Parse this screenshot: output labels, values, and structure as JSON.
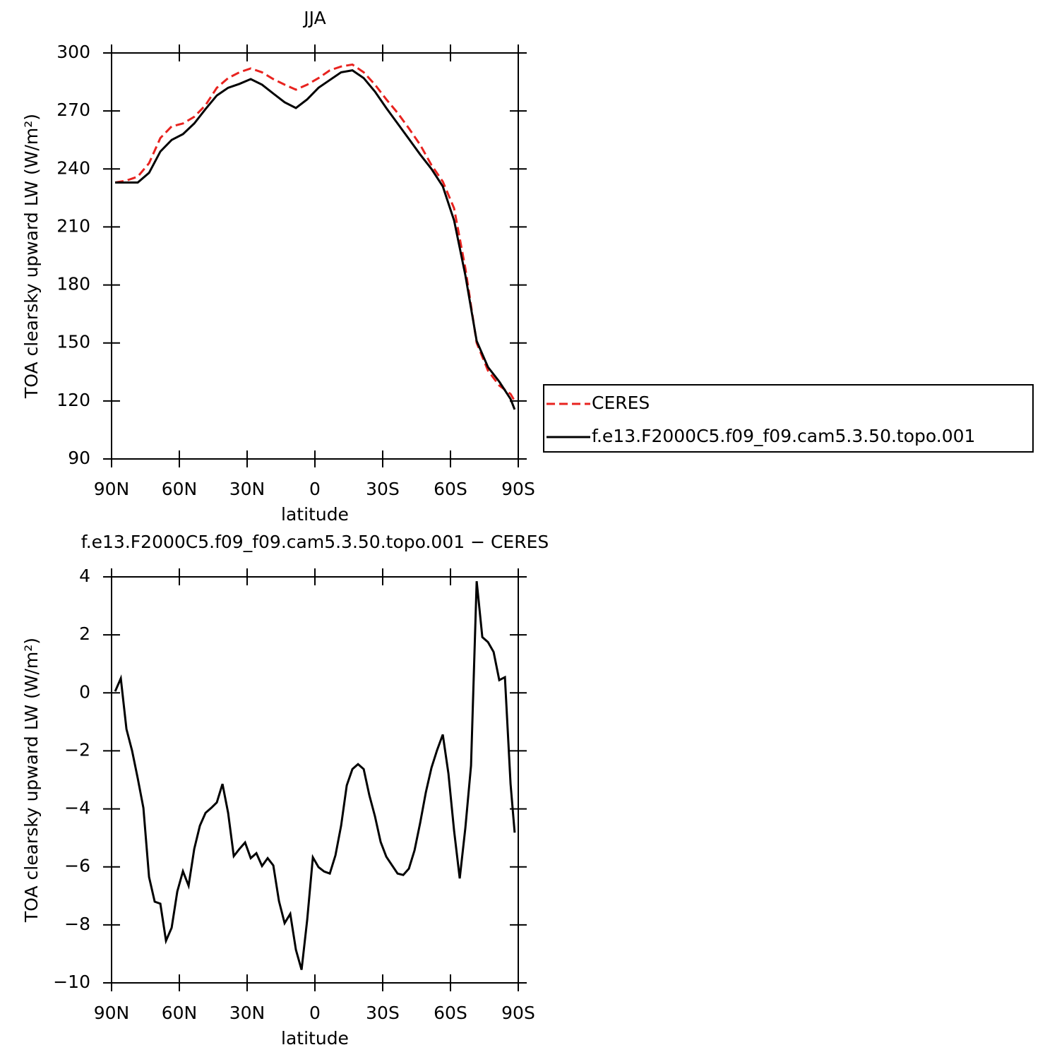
{
  "chart_data": [
    {
      "type": "line",
      "title": "JJA",
      "xlabel": "latitude",
      "ylabel": "TOA clearsky upward LW (W/m²)",
      "x": [
        88.4,
        83.4,
        78.4,
        73.4,
        68.4,
        63.4,
        58.4,
        53.4,
        48.4,
        43.4,
        38.4,
        33.4,
        28.4,
        23.4,
        18.4,
        13.4,
        8.4,
        3.4,
        -1.6,
        -6.6,
        -11.6,
        -16.6,
        -21.6,
        -26.6,
        -31.6,
        -36.6,
        -41.6,
        -46.6,
        -51.6,
        -56.6,
        -61.6,
        -66.6,
        -71.6,
        -76.6,
        -81.6,
        -86.6,
        -88.4
      ],
      "series": [
        {
          "name": "CERES",
          "color": "#e8231f",
          "line_style": "dashed",
          "values": [
            233,
            234,
            236,
            243,
            256,
            262,
            263.5,
            267,
            273,
            282,
            287,
            290,
            292,
            290,
            286.5,
            283.6,
            281,
            283.6,
            287,
            291,
            293,
            294,
            290,
            283.6,
            276,
            269,
            261,
            252.5,
            242,
            233.5,
            219.7,
            188.6,
            150,
            135.7,
            128,
            123.6,
            120
          ]
        },
        {
          "name": "f.e13.F2000C5.f09_f09.cam5.3.50.topo.001",
          "color": "#000000",
          "line_style": "solid",
          "values": [
            233,
            233,
            233,
            238,
            249,
            255,
            258,
            263.5,
            271,
            278,
            282,
            284,
            286.5,
            283.6,
            279,
            274.5,
            271.5,
            276,
            282,
            286,
            290,
            291,
            287,
            280,
            271.5,
            263.5,
            255.5,
            247.5,
            240,
            231,
            213.4,
            185,
            151,
            137.5,
            130,
            121,
            115.6
          ]
        }
      ],
      "xlim": [
        90,
        -90
      ],
      "xticks": [
        {
          "value": 90,
          "label": "90N"
        },
        {
          "value": 60,
          "label": "60N"
        },
        {
          "value": 30,
          "label": "30N"
        },
        0,
        {
          "value": -30,
          "label": "30S"
        },
        {
          "value": -60,
          "label": "60S"
        },
        {
          "value": -90,
          "label": "90S"
        }
      ],
      "ylim": [
        90,
        300
      ],
      "yticks": [
        90,
        120,
        150,
        180,
        210,
        240,
        270,
        300
      ],
      "legend": "right"
    },
    {
      "type": "line",
      "title": "f.e13.F2000C5.f09_f09.cam5.3.50.topo.001 − CERES",
      "xlabel": "latitude",
      "ylabel": "TOA clearsky upward LW (W/m²)",
      "x": [
        88.4,
        85.9,
        83.4,
        80.9,
        78.4,
        75.9,
        73.4,
        70.9,
        68.4,
        65.9,
        63.4,
        60.9,
        58.4,
        55.9,
        53.4,
        50.9,
        48.4,
        45.9,
        43.4,
        40.9,
        38.4,
        35.9,
        33.4,
        30.9,
        28.4,
        25.9,
        23.4,
        20.9,
        18.4,
        15.9,
        13.4,
        10.9,
        8.4,
        5.9,
        3.4,
        0.9,
        -1.6,
        -4.1,
        -6.6,
        -9.1,
        -11.6,
        -14.1,
        -16.6,
        -19.1,
        -21.6,
        -24.1,
        -26.6,
        -29.1,
        -31.6,
        -34.1,
        -36.6,
        -39.1,
        -41.6,
        -44.1,
        -46.6,
        -49.1,
        -51.6,
        -54.1,
        -56.6,
        -59.1,
        -61.6,
        -64.1,
        -66.6,
        -69.1,
        -71.6,
        -74.1,
        -76.6,
        -79.1,
        -81.6,
        -84.1,
        -86.6,
        -88.4
      ],
      "series": [
        {
          "name": "f.e13.F2000C5.f09_f09.cam5.3.50.topo.001 − CERES",
          "color": "#000000",
          "line_style": "solid",
          "values": [
            0.05,
            0.5,
            -1.25,
            -2.0,
            -2.95,
            -3.97,
            -6.35,
            -7.2,
            -7.27,
            -8.55,
            -8.1,
            -6.85,
            -6.15,
            -6.65,
            -5.38,
            -4.58,
            -4.14,
            -3.97,
            -3.78,
            -3.14,
            -4.14,
            -5.63,
            -5.38,
            -5.16,
            -5.7,
            -5.53,
            -5.97,
            -5.7,
            -5.95,
            -7.18,
            -7.94,
            -7.62,
            -8.86,
            -9.55,
            -7.82,
            -5.67,
            -6.01,
            -6.16,
            -6.23,
            -5.6,
            -4.58,
            -3.19,
            -2.63,
            -2.46,
            -2.63,
            -3.53,
            -4.26,
            -5.14,
            -5.65,
            -5.94,
            -6.23,
            -6.28,
            -6.06,
            -5.43,
            -4.48,
            -3.43,
            -2.58,
            -1.97,
            -1.44,
            -2.78,
            -4.75,
            -6.4,
            -4.65,
            -2.51,
            3.85,
            1.92,
            1.75,
            1.41,
            0.44,
            0.54,
            -3.14,
            -4.82
          ]
        }
      ],
      "xlim": [
        90,
        -90
      ],
      "xticks": [
        {
          "value": 90,
          "label": "90N"
        },
        {
          "value": 60,
          "label": "60N"
        },
        {
          "value": 30,
          "label": "30N"
        },
        0,
        {
          "value": -30,
          "label": "30S"
        },
        {
          "value": -60,
          "label": "60S"
        },
        {
          "value": -90,
          "label": "90S"
        }
      ],
      "ylim": [
        -10,
        4
      ],
      "yticks": [
        {
          "value": -10,
          "label": "−10"
        },
        {
          "value": -8,
          "label": "−8"
        },
        {
          "value": -6,
          "label": "−6"
        },
        {
          "value": -4,
          "label": "−4"
        },
        {
          "value": -2,
          "label": "−2"
        },
        0,
        2,
        4
      ]
    }
  ]
}
